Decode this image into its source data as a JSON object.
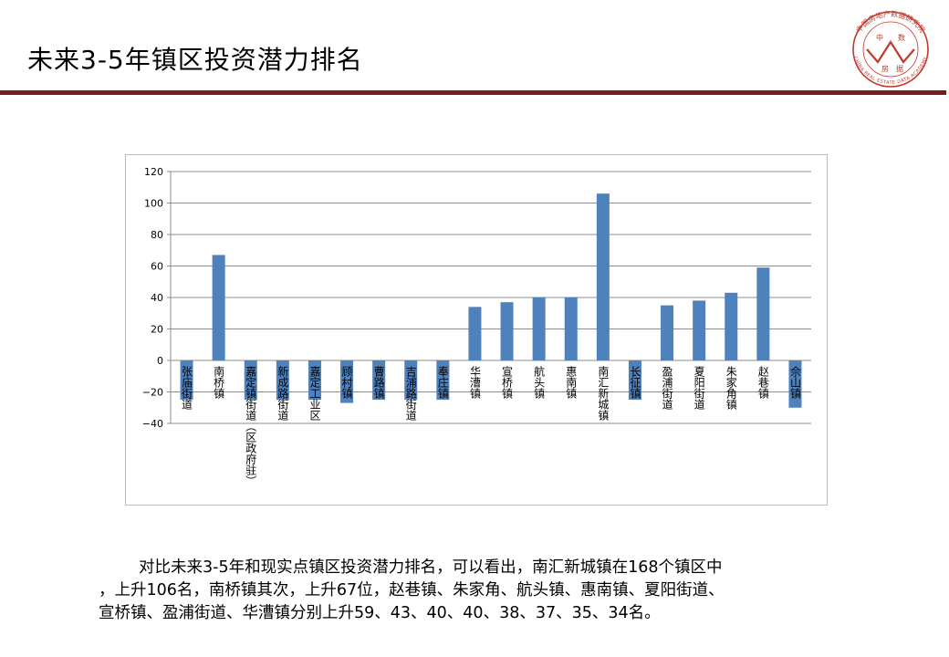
{
  "header": {
    "title": "未来3-5年镇区投资潜力排名"
  },
  "logo": {
    "chars": [
      "中",
      "数",
      "房",
      "据"
    ],
    "ring_cn": "中国房地产数据研究院",
    "ring_en": "CHINA REAL ESTATE DATA ACADEMY",
    "color": "#c0392b"
  },
  "chart_data": {
    "type": "bar",
    "categories": [
      "张庙街道",
      "南桥镇",
      "嘉定镇街道（区政府驻）",
      "新成路街道",
      "嘉定工业区",
      "顾村镇",
      "曹路镇",
      "吉浦路街道",
      "奉庄镇",
      "华漕镇",
      "宣桥镇",
      "航头镇",
      "惠南镇",
      "南汇新城镇",
      "长征镇",
      "盈浦街道",
      "夏阳街道",
      "朱家角镇",
      "赵巷镇",
      "佘山镇"
    ],
    "values": [
      -25,
      67,
      -25,
      -25,
      -25,
      -27,
      -25,
      -25,
      -25,
      34,
      37,
      40,
      40,
      106,
      -25,
      35,
      38,
      43,
      59,
      -30
    ],
    "yticks": [
      "120",
      "100",
      "80",
      "60",
      "40",
      "20",
      "0",
      "−20",
      "−40"
    ],
    "ylim": [
      -40,
      120
    ],
    "grid": true,
    "bar_color": "#4f81bd",
    "title": "",
    "xlabel": "",
    "ylabel": ""
  },
  "caption": {
    "line1": "对比未来3-5年和现实点镇区投资潜力排名，可以看出，南汇新城镇在168个镇区中",
    "line2": "，上升106名，南桥镇其次，上升67位，赵巷镇、朱家角、航头镇、惠南镇、夏阳街道、",
    "line3": "宣桥镇、盈浦街道、华漕镇分别上升59、43、40、40、38、37、35、34名。"
  }
}
